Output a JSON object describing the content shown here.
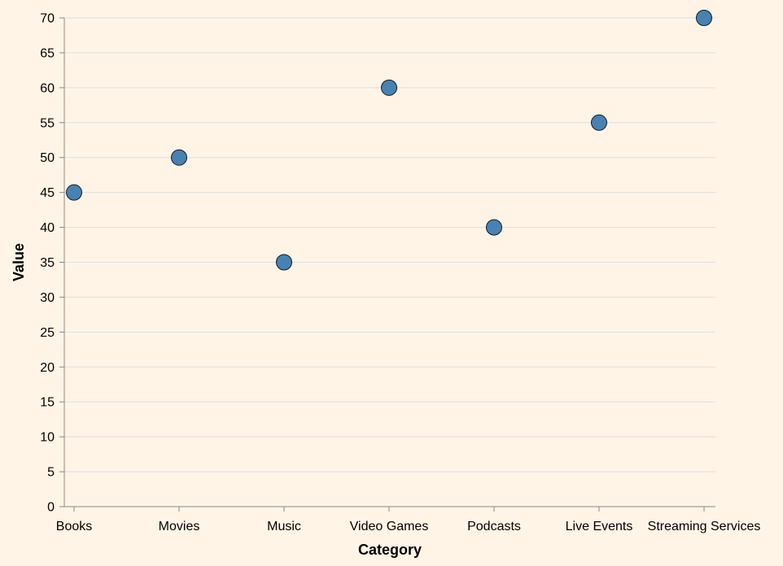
{
  "chart_data": {
    "type": "scatter",
    "categories": [
      "Books",
      "Movies",
      "Music",
      "Video Games",
      "Podcasts",
      "Live Events",
      "Streaming Services"
    ],
    "values": [
      45,
      50,
      35,
      60,
      40,
      55,
      70
    ],
    "xlabel": "Category",
    "ylabel": "Value",
    "ylim": [
      0,
      70
    ],
    "yticks": [
      0,
      5,
      10,
      15,
      20,
      25,
      30,
      35,
      40,
      45,
      50,
      55,
      60,
      65,
      70
    ],
    "grid": true,
    "point_color": "#4682b4",
    "background": "#fff4e6"
  }
}
